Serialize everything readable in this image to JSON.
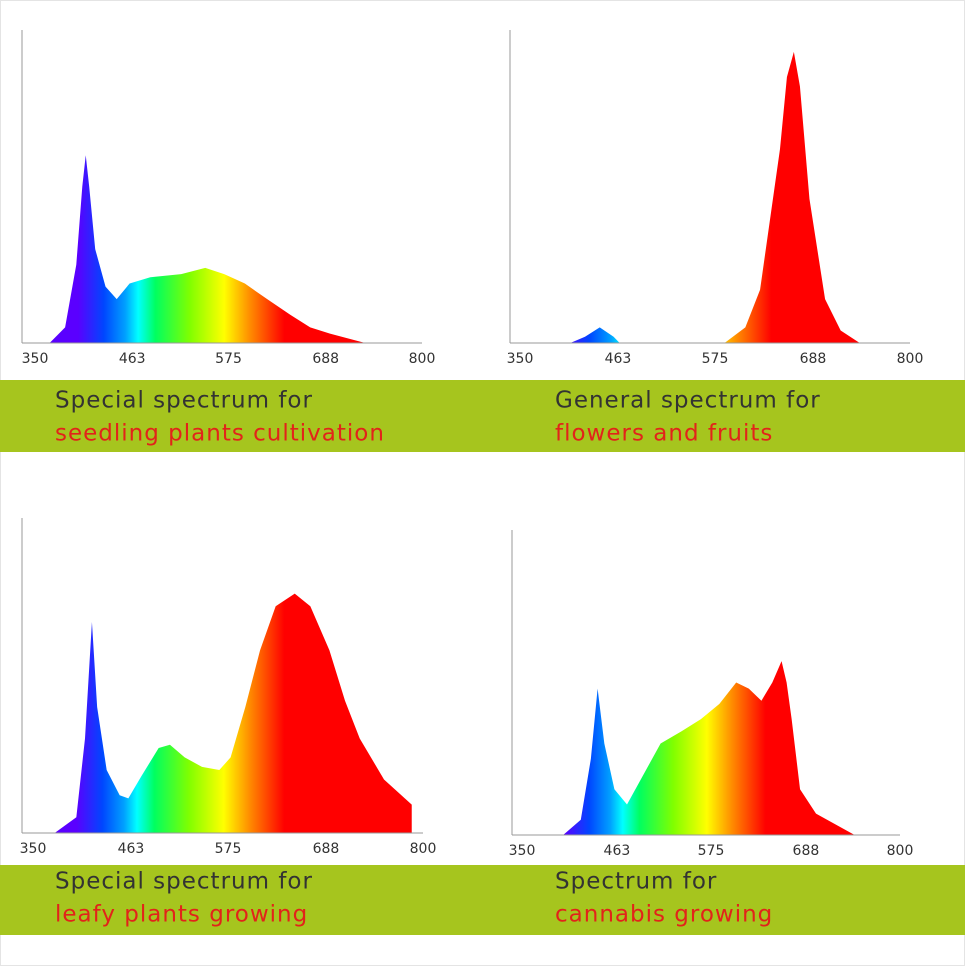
{
  "chart_data": [
    {
      "type": "area",
      "title": "Special spectrum for",
      "subtitle": "seedling plants cultivation",
      "x": [
        367,
        385,
        398,
        405,
        409,
        413,
        420,
        432,
        445,
        460,
        484,
        520,
        548,
        570,
        594,
        620,
        647,
        670,
        693,
        734
      ],
      "values": [
        0,
        5,
        25,
        50,
        60,
        50,
        30,
        18,
        14,
        19,
        21,
        22,
        24,
        22,
        19,
        14,
        9,
        5,
        3,
        0
      ],
      "xlim": [
        350,
        800
      ],
      "xticks": [
        350,
        463,
        575,
        688,
        800
      ],
      "ylim": [
        0,
        100
      ]
    },
    {
      "type": "area",
      "title": "General spectrum for",
      "subtitle": "flowers and fruits",
      "x": [
        408,
        425,
        442,
        458,
        465,
        586,
        610,
        627,
        650,
        658,
        666,
        673,
        684,
        702,
        720,
        742
      ],
      "values": [
        0,
        2,
        5,
        2,
        0,
        0,
        5,
        17,
        62,
        85,
        93,
        82,
        46,
        14,
        4,
        0
      ],
      "xlim": [
        350,
        800
      ],
      "xticks": [
        350,
        463,
        575,
        688,
        800
      ],
      "ylim": [
        0,
        100
      ]
    },
    {
      "type": "area",
      "title": "Special spectrum for",
      "subtitle": "leafy plants growing",
      "x": [
        375,
        400,
        410,
        418,
        424,
        435,
        450,
        460,
        475,
        495,
        508,
        525,
        545,
        565,
        578,
        595,
        612,
        630,
        652,
        670,
        692,
        710,
        727,
        755,
        787
      ],
      "values": [
        0,
        5,
        30,
        67,
        40,
        20,
        12,
        11,
        18,
        27,
        28,
        24,
        21,
        20,
        24,
        40,
        58,
        72,
        76,
        72,
        58,
        42,
        30,
        17,
        9
      ],
      "xlim": [
        350,
        800
      ],
      "xticks": [
        350,
        463,
        575,
        688,
        800
      ],
      "ylim": [
        0,
        100
      ]
    },
    {
      "type": "area",
      "title": "Spectrum for",
      "subtitle": "cannabis growing",
      "x": [
        399,
        420,
        432,
        440,
        448,
        460,
        475,
        495,
        515,
        540,
        563,
        585,
        605,
        620,
        635,
        648,
        659,
        665,
        671,
        681,
        700,
        746
      ],
      "values": [
        0,
        5,
        25,
        48,
        30,
        15,
        10,
        20,
        30,
        34,
        38,
        43,
        50,
        48,
        44,
        50,
        57,
        50,
        38,
        15,
        7,
        0
      ],
      "xlim": [
        350,
        800
      ],
      "xticks": [
        350,
        463,
        575,
        688,
        800
      ],
      "ylim": [
        0,
        100
      ]
    }
  ]
}
